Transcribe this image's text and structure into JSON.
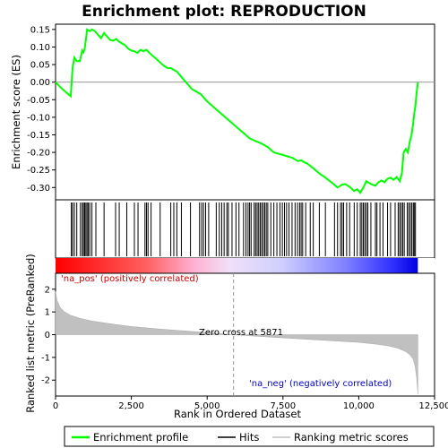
{
  "chart_data": {
    "type": "line",
    "title": "Enrichment plot: REPRODUCTION",
    "xlabel": "Rank in Ordered Dataset",
    "ylabel_top": "Enrichment score (ES)",
    "ylabel_bottom": "Ranked list metric (PreRanked)",
    "xlim": [
      0,
      12500
    ],
    "x_ticks": [
      0,
      2500,
      5000,
      7500,
      10000,
      12500
    ],
    "x_tick_labels": [
      "0",
      "2,500",
      "5,000",
      "7,500",
      "10,000",
      "12,500"
    ],
    "es_ylim": [
      -0.335,
      0.165
    ],
    "es_ticks": [
      0.15,
      0.1,
      0.05,
      0.0,
      -0.05,
      -0.1,
      -0.15,
      -0.2,
      -0.25,
      -0.3
    ],
    "es_tick_labels": [
      "0.15",
      "0.10",
      "0.05",
      "0.00",
      "-0.05",
      "-0.10",
      "-0.15",
      "-0.20",
      "-0.25",
      "-0.30"
    ],
    "metric_ylim": [
      -2.7,
      2.7
    ],
    "metric_ticks": [
      2,
      1,
      0,
      -1,
      -2
    ],
    "metric_tick_labels": [
      "2",
      "1",
      "0",
      "-1",
      "-2"
    ],
    "zero_cross_rank": 5871,
    "zero_cross_label": "Zero cross at 5871",
    "pos_label": "'na_pos' (positively correlated)",
    "neg_label": "'na_neg' (negatively correlated)",
    "n_genes": 11950,
    "series": [
      {
        "name": "Enrichment profile",
        "color": "#00ff00",
        "x": [
          0,
          200,
          500,
          560,
          620,
          700,
          800,
          880,
          920,
          960,
          1000,
          1040,
          1080,
          1130,
          1200,
          1300,
          1400,
          1500,
          1600,
          1700,
          1800,
          1900,
          2000,
          2100,
          2200,
          2300,
          2400,
          2500,
          2600,
          2700,
          2800,
          2900,
          3000,
          3100,
          3200,
          3300,
          3400,
          3500,
          3600,
          3700,
          3800,
          3900,
          4000,
          4100,
          4200,
          4300,
          4400,
          4500,
          4600,
          4700,
          4800,
          4900,
          5000,
          5200,
          5400,
          5600,
          5800,
          6000,
          6200,
          6400,
          6600,
          6800,
          7000,
          7200,
          7400,
          7600,
          7800,
          8000,
          8100,
          8200,
          8300,
          8500,
          8700,
          8900,
          9100,
          9300,
          9450,
          9550,
          9700,
          9850,
          9950,
          10050,
          10150,
          10250,
          10400,
          10550,
          10650,
          10750,
          10850,
          10950,
          11050,
          11150,
          11250,
          11350,
          11420,
          11480,
          11550,
          11620,
          11680,
          11740,
          11790,
          11830,
          11870,
          11910,
          11950
        ],
        "y": [
          0.0,
          -0.018,
          -0.04,
          0.04,
          0.07,
          0.06,
          0.06,
          0.09,
          0.085,
          0.095,
          0.12,
          0.15,
          0.148,
          0.145,
          0.15,
          0.145,
          0.135,
          0.125,
          0.14,
          0.13,
          0.12,
          0.118,
          0.123,
          0.115,
          0.11,
          0.105,
          0.095,
          0.09,
          0.088,
          0.083,
          0.092,
          0.088,
          0.092,
          0.083,
          0.075,
          0.068,
          0.06,
          0.052,
          0.045,
          0.04,
          0.04,
          0.035,
          0.03,
          0.02,
          0.01,
          0.0,
          -0.01,
          -0.02,
          -0.025,
          -0.03,
          -0.035,
          -0.045,
          -0.055,
          -0.07,
          -0.085,
          -0.1,
          -0.115,
          -0.13,
          -0.145,
          -0.16,
          -0.168,
          -0.175,
          -0.185,
          -0.2,
          -0.205,
          -0.21,
          -0.215,
          -0.225,
          -0.222,
          -0.228,
          -0.232,
          -0.245,
          -0.26,
          -0.272,
          -0.285,
          -0.3,
          -0.292,
          -0.29,
          -0.298,
          -0.31,
          -0.305,
          -0.315,
          -0.3,
          -0.282,
          -0.29,
          -0.295,
          -0.285,
          -0.28,
          -0.285,
          -0.275,
          -0.272,
          -0.278,
          -0.27,
          -0.282,
          -0.26,
          -0.2,
          -0.19,
          -0.2,
          -0.17,
          -0.15,
          -0.12,
          -0.09,
          -0.065,
          -0.03,
          0.0
        ]
      }
    ],
    "hits": [
      520,
      560,
      620,
      700,
      820,
      880,
      920,
      960,
      1000,
      1040,
      1080,
      1130,
      1200,
      1330,
      1600,
      1980,
      2100,
      2350,
      2600,
      2720,
      2950,
      3000,
      3050,
      3150,
      3450,
      3800,
      3900,
      4000,
      4150,
      4450,
      4750,
      4820,
      4880,
      4950,
      5050,
      5300,
      5400,
      5480,
      5560,
      5650,
      5700,
      5820,
      5950,
      6050,
      6200,
      6280,
      6350,
      6400,
      6450,
      6550,
      6600,
      6650,
      6700,
      6750,
      6800,
      6850,
      6900,
      6950,
      7000,
      7100,
      7200,
      7300,
      7400,
      7480,
      7550,
      7620,
      7700,
      7800,
      7900,
      7980,
      8050,
      8100,
      8150,
      8250,
      8400,
      8500,
      8700,
      8900,
      9200,
      9300,
      9400,
      9450,
      9500,
      9600,
      9700,
      9850,
      9950,
      10050,
      10100,
      10150,
      10200,
      10250,
      10300,
      10400,
      10550,
      10600,
      10700,
      10800,
      10950,
      11050,
      11200,
      11300,
      11350,
      11400,
      11450,
      11500,
      11600,
      11650,
      11700,
      11750,
      11800,
      11830,
      11870
    ],
    "metric_curve": {
      "x": [
        0,
        50,
        150,
        300,
        500,
        800,
        1200,
        1800,
        2500,
        3500,
        4500,
        5200,
        5871,
        6500,
        7200,
        8000,
        9000,
        10000,
        10600,
        11000,
        11300,
        11550,
        11700,
        11800,
        11860,
        11910,
        11950
      ],
      "y": [
        1.9,
        1.5,
        1.2,
        1.0,
        0.85,
        0.72,
        0.6,
        0.48,
        0.36,
        0.24,
        0.14,
        0.07,
        0.0,
        -0.06,
        -0.12,
        -0.18,
        -0.26,
        -0.34,
        -0.42,
        -0.5,
        -0.6,
        -0.75,
        -0.9,
        -1.1,
        -1.4,
        -1.9,
        -2.6
      ]
    }
  },
  "legend": {
    "items": [
      {
        "label": "Enrichment profile",
        "color": "#00ff00"
      },
      {
        "label": "Hits",
        "color": "#000000"
      },
      {
        "label": "Ranking metric scores",
        "color": "#c0c0c0"
      }
    ]
  }
}
